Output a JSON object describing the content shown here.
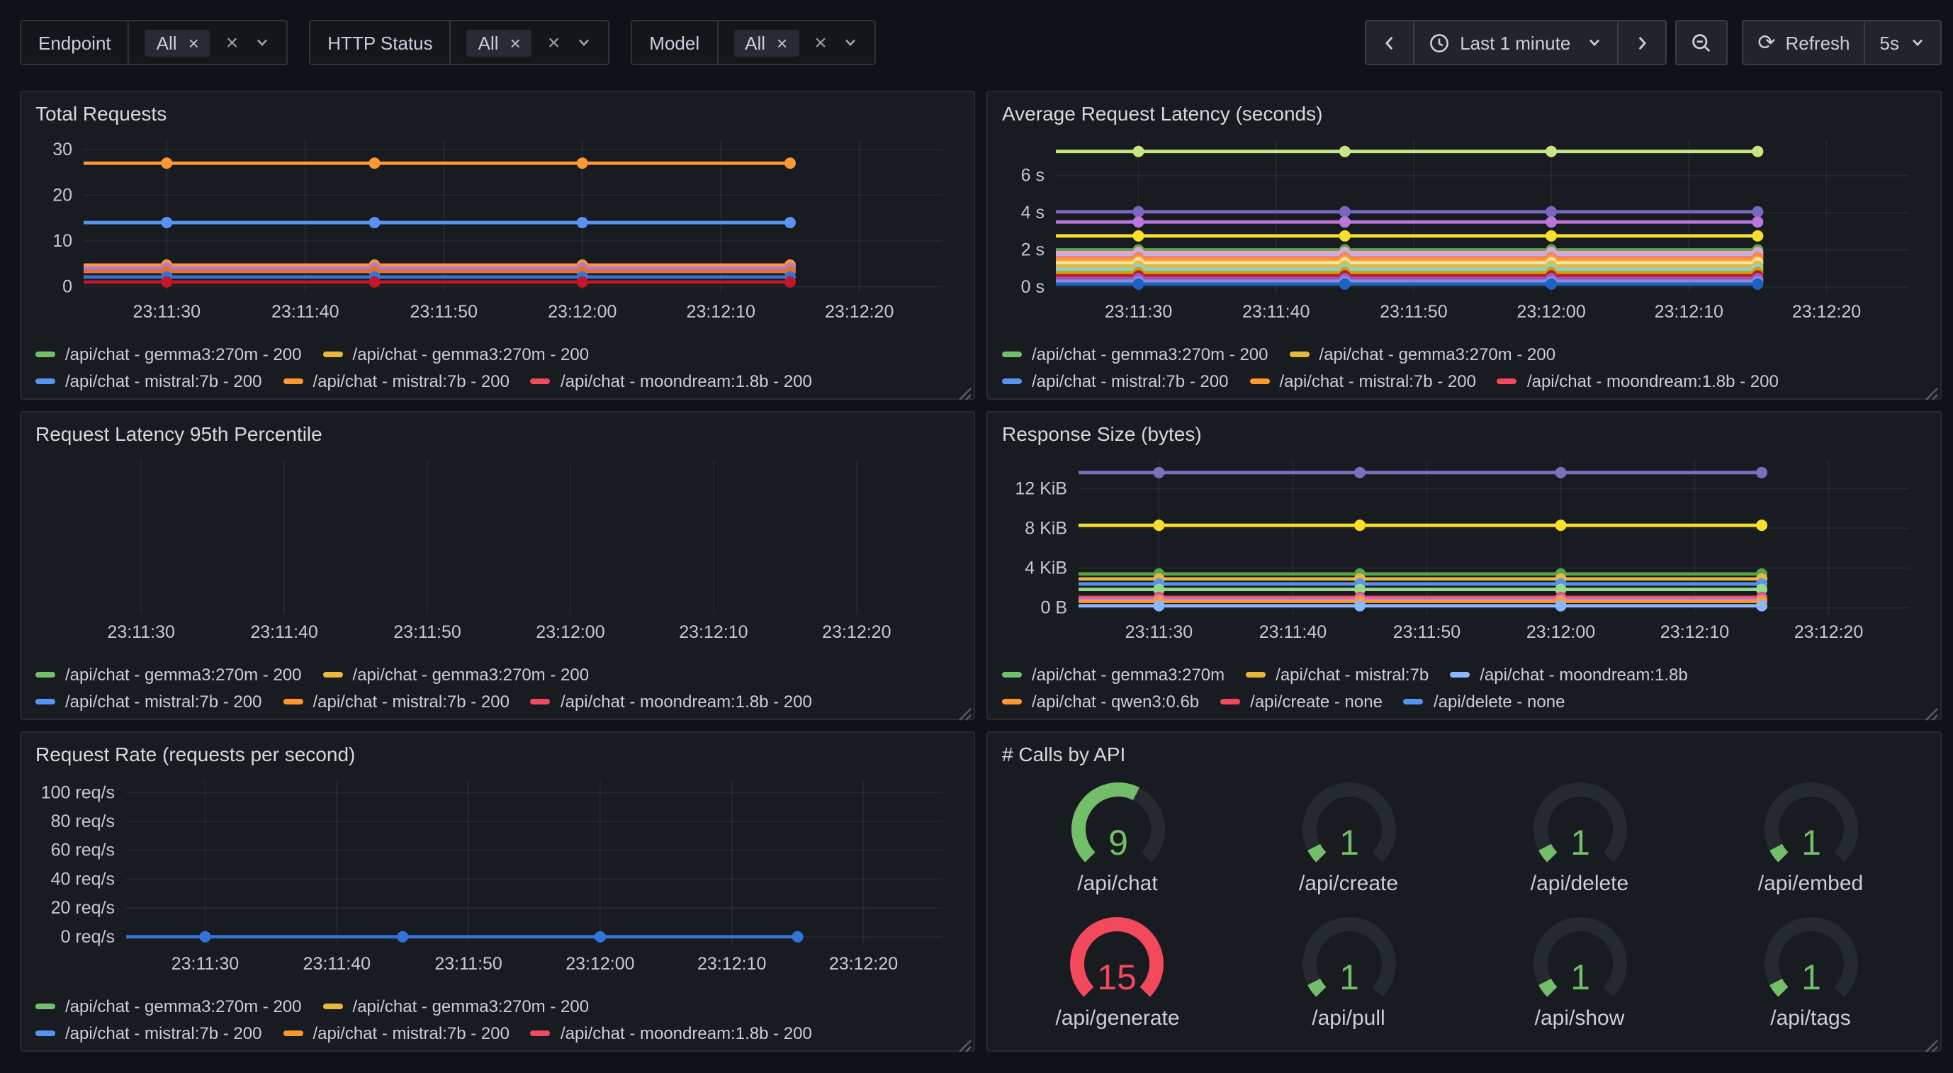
{
  "theme": {
    "background": "#111217",
    "panel_background": "#181B1F",
    "text_primary": "#CCCCDC",
    "grid_line": "rgba(204,204,220,0.07)",
    "green": "#73BF69",
    "red": "#F2495C",
    "gauge_track": "#252A30"
  },
  "toolbar": {
    "filters": [
      {
        "label": "Endpoint",
        "selected": "All"
      },
      {
        "label": "HTTP Status",
        "selected": "All"
      },
      {
        "label": "Model",
        "selected": "All"
      }
    ],
    "time_range": "Last 1 minute",
    "refresh_label": "Refresh",
    "refresh_interval": "5s"
  },
  "chart_data": [
    {
      "id": "total-requests",
      "type": "line",
      "title": "Total Requests",
      "x_ticks": [
        "23:11:30",
        "23:11:40",
        "23:11:50",
        "23:12:00",
        "23:12:10",
        "23:12:20"
      ],
      "marker_times": [
        "23:11:30",
        "23:11:45",
        "23:12:00",
        "23:12:15"
      ],
      "y_ticks": [
        {
          "label": "0",
          "value": 0
        },
        {
          "label": "10",
          "value": 10
        },
        {
          "label": "20",
          "value": 20
        },
        {
          "label": "30",
          "value": 30
        }
      ],
      "ylim": [
        -1.5,
        32
      ],
      "axis_label_width": 34,
      "grid": true,
      "series": [
        {
          "color": "#FF9830",
          "values": [
            27,
            27,
            27,
            27
          ]
        },
        {
          "color": "#5794F2",
          "values": [
            14,
            14,
            14,
            14
          ]
        },
        {
          "color": "#FF9830",
          "values": [
            4.7,
            4.7,
            4.7,
            4.7
          ]
        },
        {
          "color": "#B877D9",
          "values": [
            4.05,
            4.05,
            4.05,
            4.05
          ]
        },
        {
          "color": "#E0752F",
          "values": [
            3.3,
            3.3,
            3.3,
            3.3
          ]
        },
        {
          "color": "#3274D9",
          "values": [
            2.1,
            2.1,
            2.1,
            2.1
          ]
        },
        {
          "color": "#C4162A",
          "values": [
            1,
            1,
            1,
            1
          ]
        }
      ],
      "legend_rows": [
        [
          {
            "color": "#73BF69",
            "label": "/api/chat - gemma3:270m - 200"
          },
          {
            "color": "#EAB839",
            "label": "/api/chat - gemma3:270m - 200"
          }
        ],
        [
          {
            "color": "#5794F2",
            "label": "/api/chat - mistral:7b - 200"
          },
          {
            "color": "#FF9830",
            "label": "/api/chat - mistral:7b - 200"
          },
          {
            "color": "#F2495C",
            "label": "/api/chat - moondream:1.8b - 200"
          }
        ]
      ]
    },
    {
      "id": "avg-request-latency",
      "type": "line",
      "title": "Average Request Latency (seconds)",
      "x_ticks": [
        "23:11:30",
        "23:11:40",
        "23:11:50",
        "23:12:00",
        "23:12:10",
        "23:12:20"
      ],
      "marker_times": [
        "23:11:30",
        "23:11:45",
        "23:12:00",
        "23:12:15"
      ],
      "y_ticks": [
        {
          "label": "0 s",
          "value": 0
        },
        {
          "label": "2 s",
          "value": 2
        },
        {
          "label": "4 s",
          "value": 4
        },
        {
          "label": "6 s",
          "value": 6
        }
      ],
      "ylim": [
        -0.35,
        7.9
      ],
      "axis_label_width": 38,
      "grid": true,
      "series": [
        {
          "color": "#C8E583",
          "values": [
            7.3,
            7.3,
            7.3,
            7.3
          ]
        },
        {
          "color": "#7B66BF",
          "values": [
            4.05,
            4.05,
            4.05,
            4.05
          ]
        },
        {
          "color": "#B877D9",
          "values": [
            3.5,
            3.5,
            3.5,
            3.5
          ]
        },
        {
          "color": "#FADE2A",
          "values": [
            2.75,
            2.75,
            2.75,
            2.75
          ]
        },
        {
          "color": "#56A64B",
          "values": [
            2.0,
            2.0,
            2.0,
            2.0
          ]
        },
        {
          "color": "#F2A0CF",
          "values": [
            1.85,
            1.85,
            1.85,
            1.85
          ]
        },
        {
          "color": "#BCB2E8",
          "values": [
            1.7,
            1.7,
            1.7,
            1.7
          ]
        },
        {
          "color": "#F2845C",
          "values": [
            1.58,
            1.58,
            1.58,
            1.58
          ]
        },
        {
          "color": "#FF9830",
          "values": [
            1.45,
            1.45,
            1.45,
            1.45
          ]
        },
        {
          "color": "#F0E6A0",
          "values": [
            1.3,
            1.3,
            1.3,
            1.3
          ]
        },
        {
          "color": "#EAB839",
          "values": [
            1.12,
            1.12,
            1.12,
            1.12
          ]
        },
        {
          "color": "#7FD6DE",
          "values": [
            0.95,
            0.95,
            0.95,
            0.95
          ]
        },
        {
          "color": "#CCA300",
          "values": [
            0.78,
            0.78,
            0.78,
            0.78
          ]
        },
        {
          "color": "#C4162A",
          "values": [
            0.6,
            0.6,
            0.6,
            0.6
          ]
        },
        {
          "color": "#A352CC",
          "values": [
            0.45,
            0.45,
            0.45,
            0.45
          ]
        },
        {
          "color": "#7E92CE",
          "values": [
            0.3,
            0.3,
            0.3,
            0.3
          ]
        },
        {
          "color": "#1F60C4",
          "values": [
            0.15,
            0.15,
            0.15,
            0.15
          ]
        }
      ],
      "legend_rows": [
        [
          {
            "color": "#73BF69",
            "label": "/api/chat - gemma3:270m - 200"
          },
          {
            "color": "#EAB839",
            "label": "/api/chat - gemma3:270m - 200"
          }
        ],
        [
          {
            "color": "#5794F2",
            "label": "/api/chat - mistral:7b - 200"
          },
          {
            "color": "#FF9830",
            "label": "/api/chat - mistral:7b - 200"
          },
          {
            "color": "#F2495C",
            "label": "/api/chat - moondream:1.8b - 200"
          }
        ]
      ]
    },
    {
      "id": "latency-p95",
      "type": "line",
      "title": "Request Latency 95th Percentile",
      "x_ticks": [
        "23:11:30",
        "23:11:40",
        "23:11:50",
        "23:12:00",
        "23:12:10",
        "23:12:20"
      ],
      "marker_times": [],
      "y_ticks": [],
      "ylim": [
        0,
        1
      ],
      "axis_label_width": 14,
      "grid": true,
      "series": [],
      "legend_rows": [
        [
          {
            "color": "#73BF69",
            "label": "/api/chat - gemma3:270m - 200"
          },
          {
            "color": "#EAB839",
            "label": "/api/chat - gemma3:270m - 200"
          }
        ],
        [
          {
            "color": "#5794F2",
            "label": "/api/chat - mistral:7b - 200"
          },
          {
            "color": "#FF9830",
            "label": "/api/chat - mistral:7b - 200"
          },
          {
            "color": "#F2495C",
            "label": "/api/chat - moondream:1.8b - 200"
          }
        ]
      ]
    },
    {
      "id": "response-size",
      "type": "line",
      "title": "Response Size (bytes)",
      "x_ticks": [
        "23:11:30",
        "23:11:40",
        "23:11:50",
        "23:12:00",
        "23:12:10",
        "23:12:20"
      ],
      "marker_times": [
        "23:11:30",
        "23:11:45",
        "23:12:00",
        "23:12:15"
      ],
      "y_ticks": [
        {
          "label": "0 B",
          "value": 0
        },
        {
          "label": "4 KiB",
          "value": 4
        },
        {
          "label": "8 KiB",
          "value": 8
        },
        {
          "label": "12 KiB",
          "value": 12
        }
      ],
      "ylim": [
        -0.6,
        14.8
      ],
      "axis_label_width": 54,
      "grid": true,
      "series": [
        {
          "color": "#7B6FC0",
          "values": [
            13.6,
            13.6,
            13.6,
            13.6
          ]
        },
        {
          "color": "#FADE2A",
          "values": [
            8.3,
            8.3,
            8.3,
            8.3
          ]
        },
        {
          "color": "#56A64B",
          "values": [
            3.4,
            3.4,
            3.4,
            3.4
          ]
        },
        {
          "color": "#EAB839",
          "values": [
            2.9,
            2.9,
            2.9,
            2.9
          ]
        },
        {
          "color": "#5794F2",
          "values": [
            2.4,
            2.4,
            2.4,
            2.4
          ]
        },
        {
          "color": "#96D98D",
          "values": [
            1.85,
            1.85,
            1.85,
            1.85
          ]
        },
        {
          "color": "#F2495C",
          "values": [
            1.05,
            1.05,
            1.05,
            1.05
          ]
        },
        {
          "color": "#B877D9",
          "values": [
            0.85,
            0.85,
            0.85,
            0.85
          ]
        },
        {
          "color": "#FF9830",
          "values": [
            0.65,
            0.65,
            0.65,
            0.65
          ]
        },
        {
          "color": "#8AB8FF",
          "values": [
            0.2,
            0.2,
            0.2,
            0.2
          ]
        }
      ],
      "legend_rows": [
        [
          {
            "color": "#73BF69",
            "label": "/api/chat - gemma3:270m"
          },
          {
            "color": "#EAB839",
            "label": "/api/chat - mistral:7b"
          },
          {
            "color": "#8AB8FF",
            "label": "/api/chat - moondream:1.8b"
          }
        ],
        [
          {
            "color": "#FF9830",
            "label": "/api/chat - qwen3:0.6b"
          },
          {
            "color": "#F2495C",
            "label": "/api/create - none"
          },
          {
            "color": "#5794F2",
            "label": "/api/delete - none"
          }
        ]
      ]
    },
    {
      "id": "request-rate",
      "type": "line",
      "title": "Request Rate (requests per second)",
      "x_ticks": [
        "23:11:30",
        "23:11:40",
        "23:11:50",
        "23:12:00",
        "23:12:10",
        "23:12:20"
      ],
      "marker_times": [
        "23:11:30",
        "23:11:45",
        "23:12:00",
        "23:12:15"
      ],
      "y_ticks": [
        {
          "label": "0 req/s",
          "value": 0
        },
        {
          "label": "20 req/s",
          "value": 20
        },
        {
          "label": "40 req/s",
          "value": 40
        },
        {
          "label": "60 req/s",
          "value": 60
        },
        {
          "label": "80 req/s",
          "value": 80
        },
        {
          "label": "100 req/s",
          "value": 100
        }
      ],
      "ylim": [
        -6,
        108
      ],
      "axis_label_width": 64,
      "grid": true,
      "series": [
        {
          "color": "#3274D9",
          "values": [
            0,
            0,
            0,
            0
          ]
        }
      ],
      "legend_rows": [
        [
          {
            "color": "#73BF69",
            "label": "/api/chat - gemma3:270m - 200"
          },
          {
            "color": "#EAB839",
            "label": "/api/chat - gemma3:270m - 200"
          }
        ],
        [
          {
            "color": "#5794F2",
            "label": "/api/chat - mistral:7b - 200"
          },
          {
            "color": "#FF9830",
            "label": "/api/chat - mistral:7b - 200"
          },
          {
            "color": "#F2495C",
            "label": "/api/chat - moondream:1.8b - 200"
          }
        ]
      ]
    },
    {
      "id": "calls-by-api",
      "type": "gauge",
      "title": "# Calls by API",
      "max": 15,
      "items": [
        {
          "label": "/api/chat",
          "value": 9,
          "color": "#73BF69"
        },
        {
          "label": "/api/create",
          "value": 1,
          "color": "#73BF69"
        },
        {
          "label": "/api/delete",
          "value": 1,
          "color": "#73BF69"
        },
        {
          "label": "/api/embed",
          "value": 1,
          "color": "#73BF69"
        },
        {
          "label": "/api/generate",
          "value": 15,
          "color": "#F2495C"
        },
        {
          "label": "/api/pull",
          "value": 1,
          "color": "#73BF69"
        },
        {
          "label": "/api/show",
          "value": 1,
          "color": "#73BF69"
        },
        {
          "label": "/api/tags",
          "value": 1,
          "color": "#73BF69"
        }
      ]
    }
  ]
}
